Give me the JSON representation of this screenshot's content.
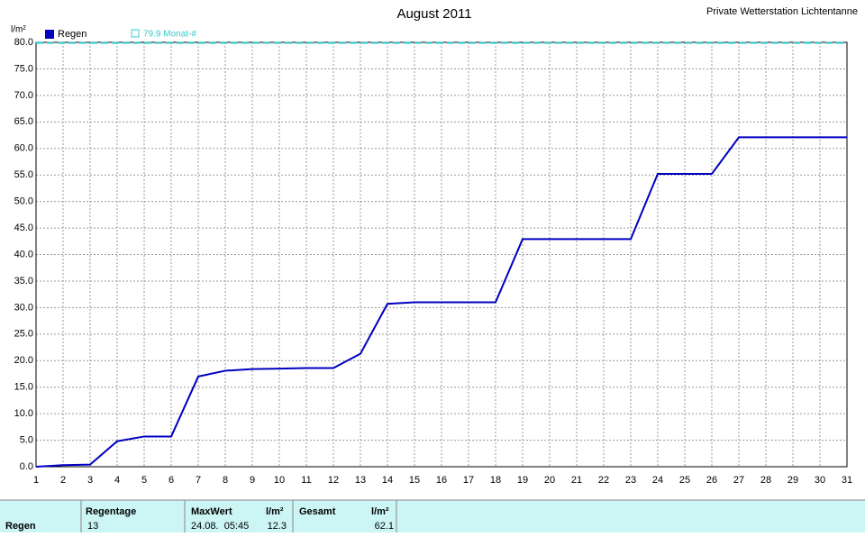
{
  "chart_data": {
    "type": "line",
    "title": "August 2011",
    "subtitle": "Private Wetterstation Lichtentanne",
    "y_label": "l/m²",
    "x": [
      1,
      2,
      3,
      4,
      5,
      6,
      7,
      8,
      9,
      10,
      11,
      12,
      13,
      14,
      15,
      16,
      17,
      18,
      19,
      20,
      21,
      22,
      23,
      24,
      25,
      26,
      27,
      28,
      29,
      30,
      31
    ],
    "xlim": [
      1,
      31
    ],
    "xticks": [
      1,
      2,
      3,
      4,
      5,
      6,
      7,
      8,
      9,
      10,
      11,
      12,
      13,
      14,
      15,
      16,
      17,
      18,
      19,
      20,
      21,
      22,
      23,
      24,
      25,
      26,
      27,
      28,
      29,
      30,
      31
    ],
    "ylim": [
      0,
      80
    ],
    "yticks": [
      {
        "value": 0,
        "label": "0.0"
      },
      {
        "value": 5,
        "label": "5.0"
      },
      {
        "value": 10,
        "label": "10.0"
      },
      {
        "value": 15,
        "label": "15.0"
      },
      {
        "value": 20,
        "label": "20.0"
      },
      {
        "value": 25,
        "label": "25.0"
      },
      {
        "value": 30,
        "label": "30.0"
      },
      {
        "value": 35,
        "label": "35.0"
      },
      {
        "value": 40,
        "label": "40.0"
      },
      {
        "value": 45,
        "label": "45.0"
      },
      {
        "value": 50,
        "label": "50.0"
      },
      {
        "value": 55,
        "label": "55.0"
      },
      {
        "value": 60,
        "label": "60.0"
      },
      {
        "value": 65,
        "label": "65.0"
      },
      {
        "value": 70,
        "label": "70.0"
      },
      {
        "value": 75,
        "label": "75.0"
      },
      {
        "value": 80,
        "label": "80.0"
      }
    ],
    "grid": true,
    "series": [
      {
        "name": "Regen",
        "color": "#0000c0",
        "values": [
          0.0,
          0.3,
          0.4,
          4.8,
          5.7,
          5.7,
          17.0,
          18.1,
          18.4,
          18.5,
          18.6,
          18.6,
          21.3,
          30.7,
          31.0,
          31.0,
          31.0,
          31.0,
          42.9,
          42.9,
          42.9,
          42.9,
          42.9,
          55.2,
          55.2,
          55.2,
          62.1,
          62.1,
          62.1,
          62.1,
          62.1
        ]
      }
    ],
    "reference": {
      "label": "79.9 Monat-#",
      "value": 79.9,
      "color": "#33cccc"
    }
  },
  "summary_table": {
    "headers": [
      "Regentage",
      "MaxWert",
      "l/m²",
      "Gesamt",
      "l/m²"
    ],
    "row": [
      "Regen",
      "13",
      "24.08.  05:45",
      "12.3",
      "62.1"
    ]
  }
}
